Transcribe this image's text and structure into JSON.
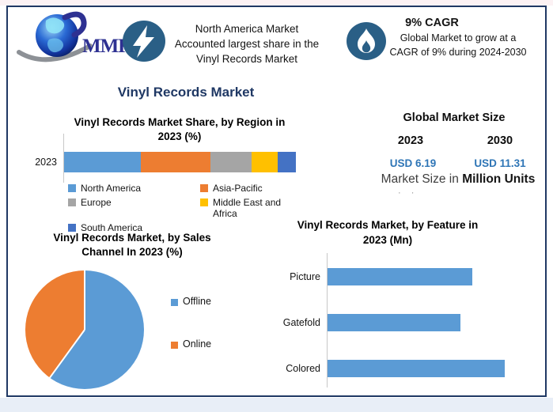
{
  "colors": {
    "border_navy": "#1f3864",
    "title_navy": "#1f3864",
    "icon_circle_blue": "#2a5f86",
    "usd_value_blue": "#2e75b6",
    "logo_text_blue": "#2e3192"
  },
  "header": {
    "logo": {
      "text": "MMR",
      "icon": "globe-icon"
    },
    "fact1": {
      "icon": "lightning-icon",
      "lines": [
        "North America Market",
        "Accounted largest share in the",
        "Vinyl Records Market"
      ]
    },
    "fact2": {
      "icon": "flame-icon",
      "headline": "9% CAGR",
      "lines": [
        "Global Market to grow at a",
        "CAGR of 9% during 2024-2030"
      ]
    }
  },
  "main_title": "Vinyl Records Market",
  "market_size": {
    "title": "Global Market Size",
    "years": [
      "2023",
      "2030"
    ],
    "values": [
      "USD 6.19",
      "USD 11.31"
    ],
    "unit_text_regular": "Market  Size in ",
    "unit_text_bold": "Million Units",
    "ellipsis": "· ·"
  },
  "chart_data": [
    {
      "type": "bar",
      "subtype": "stacked-horizontal",
      "title": "Vinyl Records Market Share, by Region in 2023 (%)",
      "title_lines": [
        "Vinyl Records Market Share, by Region in",
        "2023 (%)"
      ],
      "categories": [
        "2023"
      ],
      "series": [
        {
          "name": "North America",
          "color": "#5b9bd5",
          "values": [
            33
          ]
        },
        {
          "name": "Asia-Pacific",
          "color": "#ed7d31",
          "values": [
            30
          ]
        },
        {
          "name": "Europe",
          "color": "#a5a5a5",
          "values": [
            18
          ]
        },
        {
          "name": "Middle East and Africa",
          "color": "#ffc000",
          "values": [
            11
          ]
        },
        {
          "name": "South America",
          "color": "#4472c4",
          "values": [
            8
          ]
        }
      ],
      "xlim": [
        0,
        100
      ],
      "grid": false,
      "legend_position": "bottom"
    },
    {
      "type": "pie",
      "title": "Vinyl Records Market, by Sales Channel In 2023 (%)",
      "title_lines": [
        "Vinyl Records Market, by Sales",
        "Channel In 2023 (%)"
      ],
      "labels": [
        "Offline",
        "Online"
      ],
      "values": [
        60,
        40
      ],
      "colors": [
        "#5b9bd5",
        "#ed7d31"
      ],
      "start_angle_deg": 0,
      "direction": "clockwise",
      "legend_position": "right"
    },
    {
      "type": "bar",
      "subtype": "horizontal",
      "title": "Vinyl Records Market, by Feature in 2023 (Mn)",
      "title_lines": [
        "Vinyl Records Market, by Feature in",
        "2023 (Mn)"
      ],
      "categories": [
        "Picture",
        "Gatefold",
        "Colored"
      ],
      "values": [
        82,
        75,
        100
      ],
      "color": "#5b9bd5",
      "xlim": [
        0,
        110
      ],
      "grid": false,
      "legend_position": "none"
    }
  ]
}
